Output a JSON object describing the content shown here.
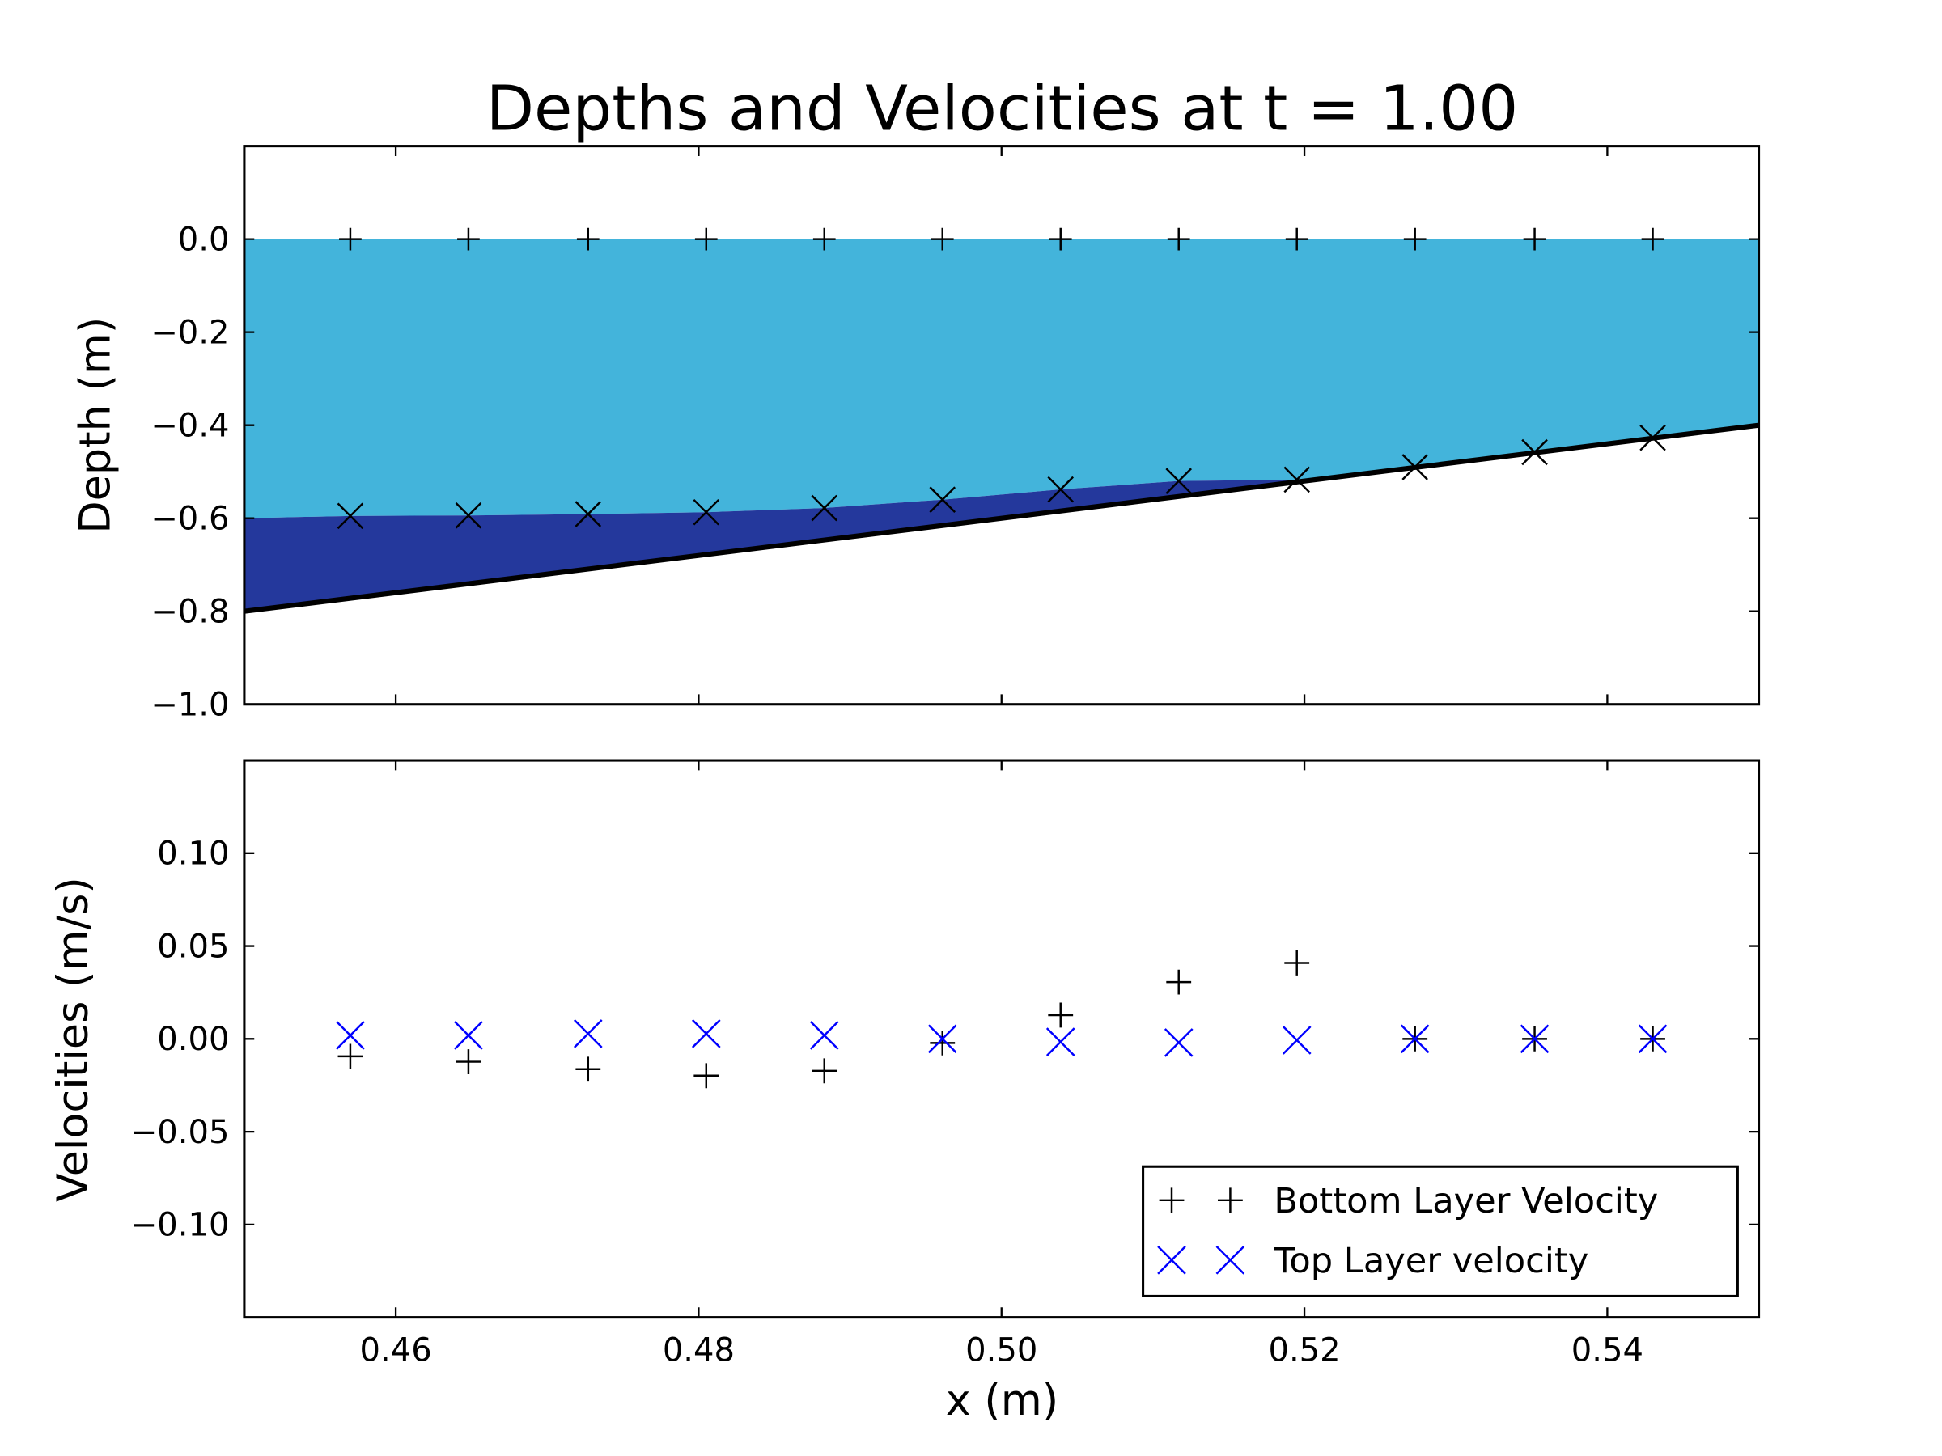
{
  "chart_data": [
    {
      "type": "area",
      "title": "Depths and Velocities at t = 1.00",
      "xlabel": "",
      "ylabel": "Depth (m)",
      "xlim": [
        0.45,
        0.55
      ],
      "ylim": [
        -1.0,
        0.2
      ],
      "yticks": [
        0.0,
        -0.2,
        -0.4,
        -0.6,
        -0.8,
        -1.0
      ],
      "ytick_labels": [
        "0.0",
        "−0.2",
        "−0.4",
        "−0.6",
        "−0.8",
        "−1.0"
      ],
      "x": [
        0.457,
        0.4648,
        0.4727,
        0.4805,
        0.4883,
        0.4961,
        0.5039,
        0.5117,
        0.5195,
        0.5273,
        0.5352,
        0.543
      ],
      "surface": [
        0,
        0,
        0,
        0,
        0,
        0,
        0,
        0,
        0,
        0,
        0,
        0
      ],
      "interface": [
        -0.595,
        -0.594,
        -0.591,
        -0.587,
        -0.578,
        -0.56,
        -0.538,
        -0.52,
        -0.517,
        -0.49,
        -0.458,
        -0.427
      ],
      "interface_start": -0.6,
      "bathymetry": {
        "x": [
          0.45,
          0.55
        ],
        "y": [
          -0.8,
          -0.4
        ]
      },
      "colors": {
        "top_layer": "#43b4db",
        "bottom_layer": "#24389c",
        "bathymetry": "#000000",
        "markers": "#000000"
      }
    },
    {
      "type": "scatter",
      "xlabel": "x (m)",
      "ylabel": "Velocities (m/s)",
      "xlim": [
        0.45,
        0.55
      ],
      "ylim": [
        -0.15,
        0.15
      ],
      "xticks": [
        0.46,
        0.48,
        0.5,
        0.52,
        0.54
      ],
      "xtick_labels": [
        "0.46",
        "0.48",
        "0.50",
        "0.52",
        "0.54"
      ],
      "yticks": [
        0.1,
        0.05,
        0.0,
        -0.05,
        -0.1
      ],
      "ytick_labels": [
        "0.10",
        "0.05",
        "0.00",
        "−0.05",
        "−0.10"
      ],
      "x": [
        0.457,
        0.4648,
        0.4727,
        0.4805,
        0.4883,
        0.4961,
        0.5039,
        0.5117,
        0.5195,
        0.5273,
        0.5352,
        0.543
      ],
      "series": [
        {
          "name": "Bottom Layer Velocity",
          "marker": "plus",
          "color": "#000000",
          "values": [
            -0.0094,
            -0.0123,
            -0.0163,
            -0.0198,
            -0.0172,
            -0.0022,
            0.0128,
            0.0306,
            0.0409,
            0.0,
            0.0,
            0.0
          ]
        },
        {
          "name": "Top Layer velocity",
          "marker": "x",
          "color": "#0000ff",
          "values": [
            0.0019,
            0.0019,
            0.0028,
            0.0028,
            0.0019,
            0.0,
            -0.0016,
            -0.002,
            -0.0007,
            0.0,
            0.0,
            0.0
          ]
        }
      ],
      "legend": "lower-right"
    }
  ]
}
